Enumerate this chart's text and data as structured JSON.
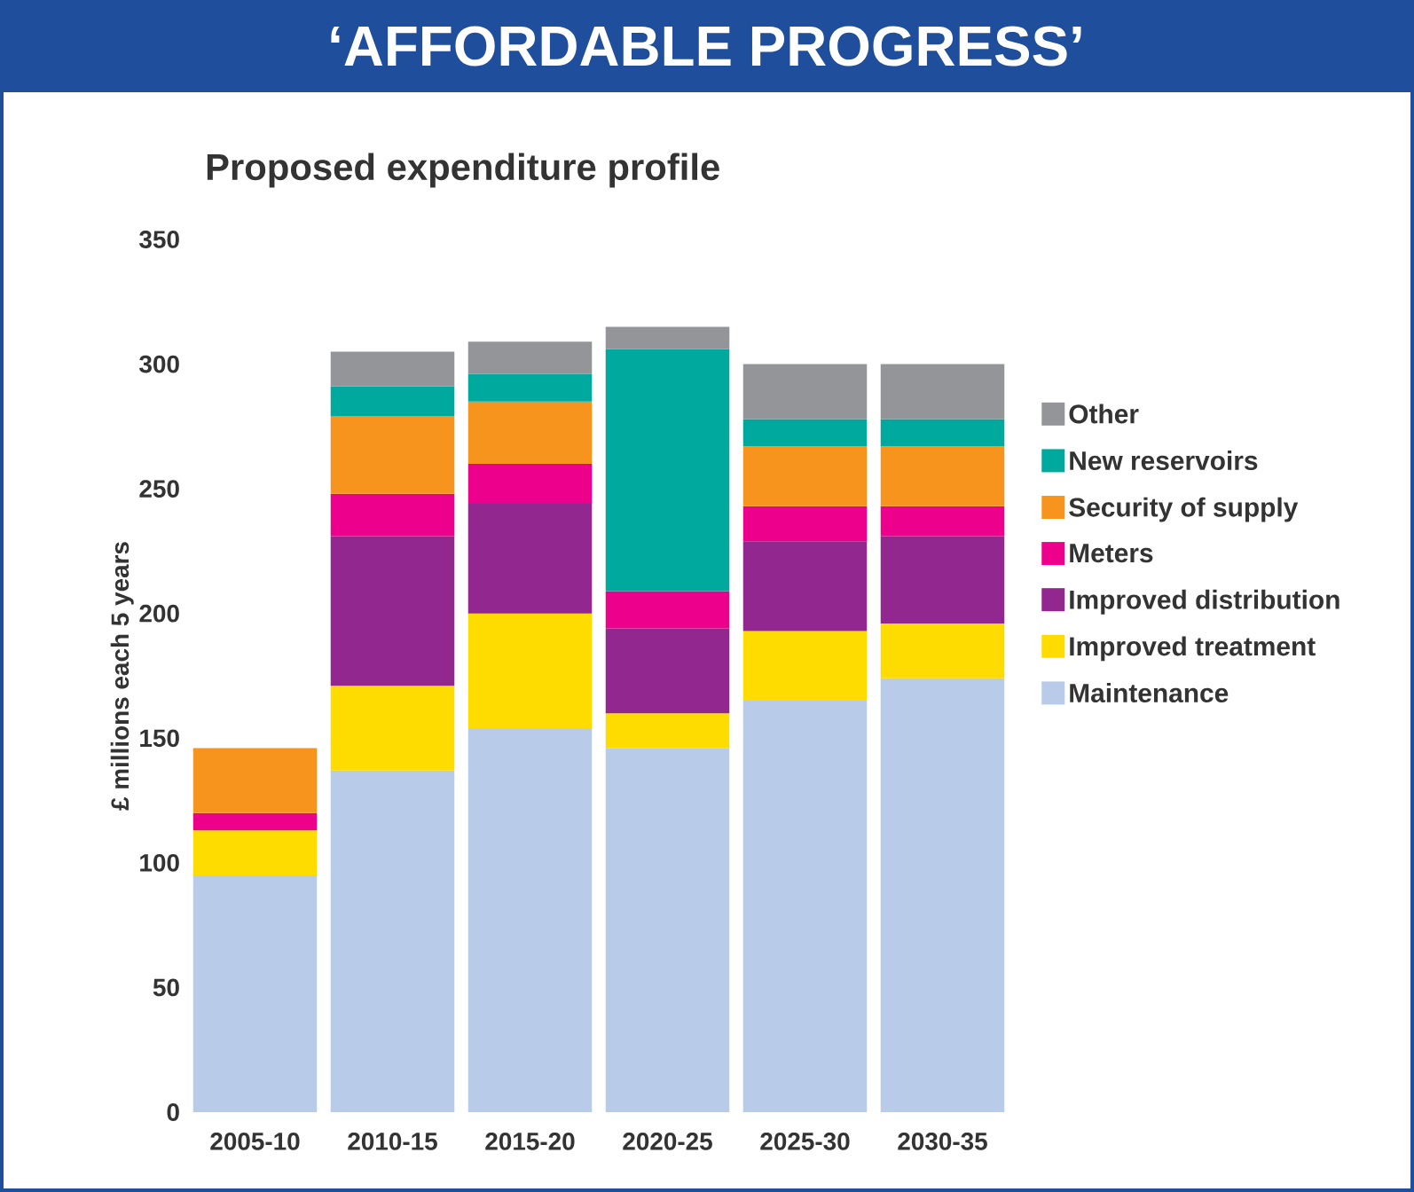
{
  "chart_data": {
    "type": "bar",
    "title": "‘AFFORDABLE PROGRESS’",
    "subtitle": "Proposed expenditure profile",
    "ylabel": "£ millions each 5 years",
    "categories": [
      "2005-10",
      "2010-15",
      "2015-20",
      "2020-25",
      "2025-30",
      "2030-35"
    ],
    "stacked": true,
    "ylim": [
      0,
      350
    ],
    "yticks": [
      0,
      50,
      100,
      150,
      200,
      250,
      300,
      350
    ],
    "legend": "right",
    "series": [
      {
        "name": "Maintenance",
        "color": "#b8cbe8",
        "values": [
          95,
          137,
          154,
          146,
          165,
          174
        ]
      },
      {
        "name": "Improved treatment",
        "color": "#ffdc00",
        "values": [
          18,
          34,
          46,
          14,
          28,
          22
        ]
      },
      {
        "name": "Improved distribution",
        "color": "#92278f",
        "values": [
          null,
          60,
          44,
          34,
          36,
          35
        ]
      },
      {
        "name": "Meters",
        "color": "#ec008c",
        "values": [
          7,
          17,
          16,
          15,
          14,
          12
        ]
      },
      {
        "name": "Security of supply",
        "color": "#f7941d",
        "values": [
          26,
          31,
          25,
          null,
          24,
          24
        ]
      },
      {
        "name": "New reservoirs",
        "color": "#00a99d",
        "values": [
          null,
          12,
          11,
          97,
          11,
          11
        ]
      },
      {
        "name": "Other",
        "color": "#939598",
        "values": [
          null,
          14,
          13,
          9,
          22,
          22
        ]
      }
    ]
  }
}
